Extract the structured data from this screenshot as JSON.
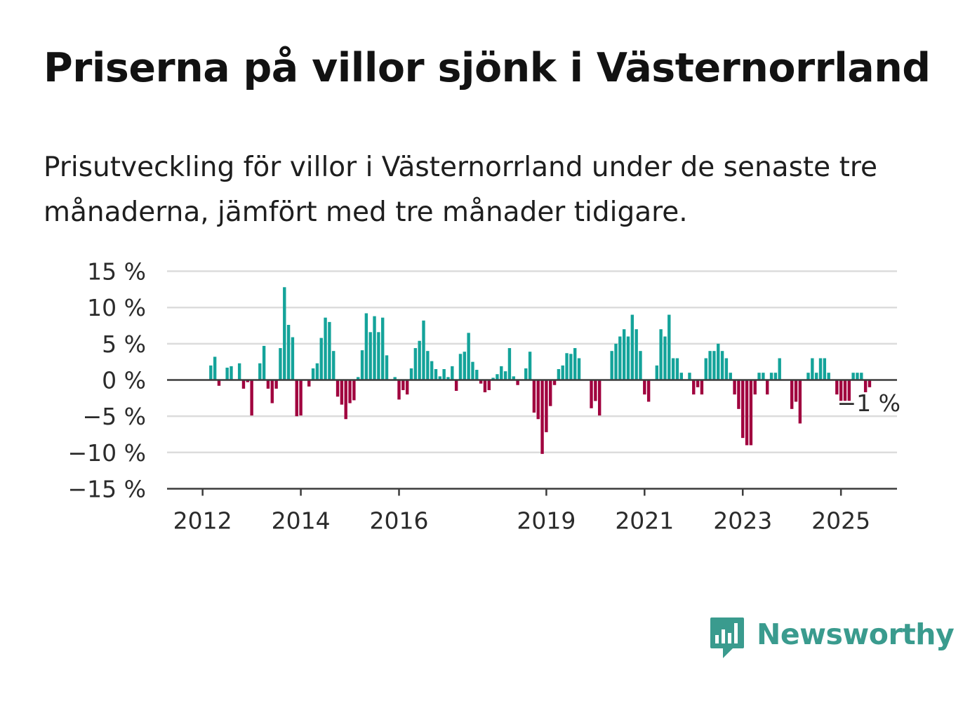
{
  "title": "Priserna på villor sjönk i Västernorrland",
  "subtitle": "Prisutveckling för villor i Västernorrland under de senaste tre månaderna, jämfört med tre månader tidigare.",
  "brand": {
    "name": "Newsworthy",
    "icon": "newsworthy-bar-chart-icon",
    "color": "#3a9b8e"
  },
  "chart_data": {
    "type": "bar",
    "x_start": "2012-01",
    "x_end": "2025-06",
    "x_ticks": [
      "2012",
      "2014",
      "2016",
      "2019",
      "2021",
      "2023",
      "2025"
    ],
    "y_ticks": [
      "15 %",
      "10 %",
      "5 %",
      "0 %",
      "−5 %",
      "−10 %",
      "−15 %"
    ],
    "ylim": [
      -15,
      15
    ],
    "grid": true,
    "colors": {
      "positive": "#14a39a",
      "negative": "#a0003e"
    },
    "last_value_label": "−1 %",
    "values": [
      0,
      2,
      3.2,
      -0.8,
      0,
      1.7,
      1.9,
      0,
      2.3,
      -1.2,
      -0.3,
      -4.9,
      0,
      2.3,
      4.7,
      -1.2,
      -3.2,
      -1.2,
      4.4,
      12.8,
      7.6,
      5.9,
      -5,
      -4.9,
      0,
      -0.9,
      1.6,
      2.3,
      5.8,
      8.6,
      8,
      4,
      -2.3,
      -3.4,
      -5.4,
      -3.2,
      -2.8,
      0.4,
      4.1,
      9.2,
      6.6,
      8.8,
      6.6,
      8.6,
      3.4,
      0,
      0.4,
      -2.7,
      -1.4,
      -2,
      1.6,
      4.4,
      5.4,
      8.2,
      4,
      2.6,
      1.5,
      0.5,
      1.5,
      0.4,
      1.9,
      -1.5,
      3.6,
      3.9,
      6.5,
      2.5,
      1.4,
      -0.5,
      -1.7,
      -1.4,
      0.3,
      0.8,
      1.9,
      1.2,
      4.4,
      0.5,
      -0.7,
      0,
      1.6,
      3.9,
      -4.5,
      -5.4,
      -10.2,
      -7.2,
      -3.6,
      -0.7,
      1.5,
      2,
      3.7,
      3.6,
      4.4,
      3,
      0,
      0,
      -3.9,
      -2.9,
      -4.9,
      0,
      0,
      4,
      5,
      6,
      7,
      6,
      9,
      7,
      4,
      -2,
      -3,
      0,
      2,
      7,
      6,
      9,
      3,
      3,
      1,
      0,
      1,
      -2,
      -1,
      -2,
      3,
      4,
      4,
      5,
      4,
      3,
      1,
      -2,
      -4,
      -8,
      -9,
      -9,
      -2,
      1,
      1,
      -2,
      1,
      1,
      3,
      0,
      0,
      -4,
      -3,
      -6,
      0,
      1,
      3,
      1,
      3,
      3,
      1,
      0,
      -2,
      -3,
      -3,
      -3,
      1,
      1,
      1,
      -2,
      -1
    ]
  }
}
